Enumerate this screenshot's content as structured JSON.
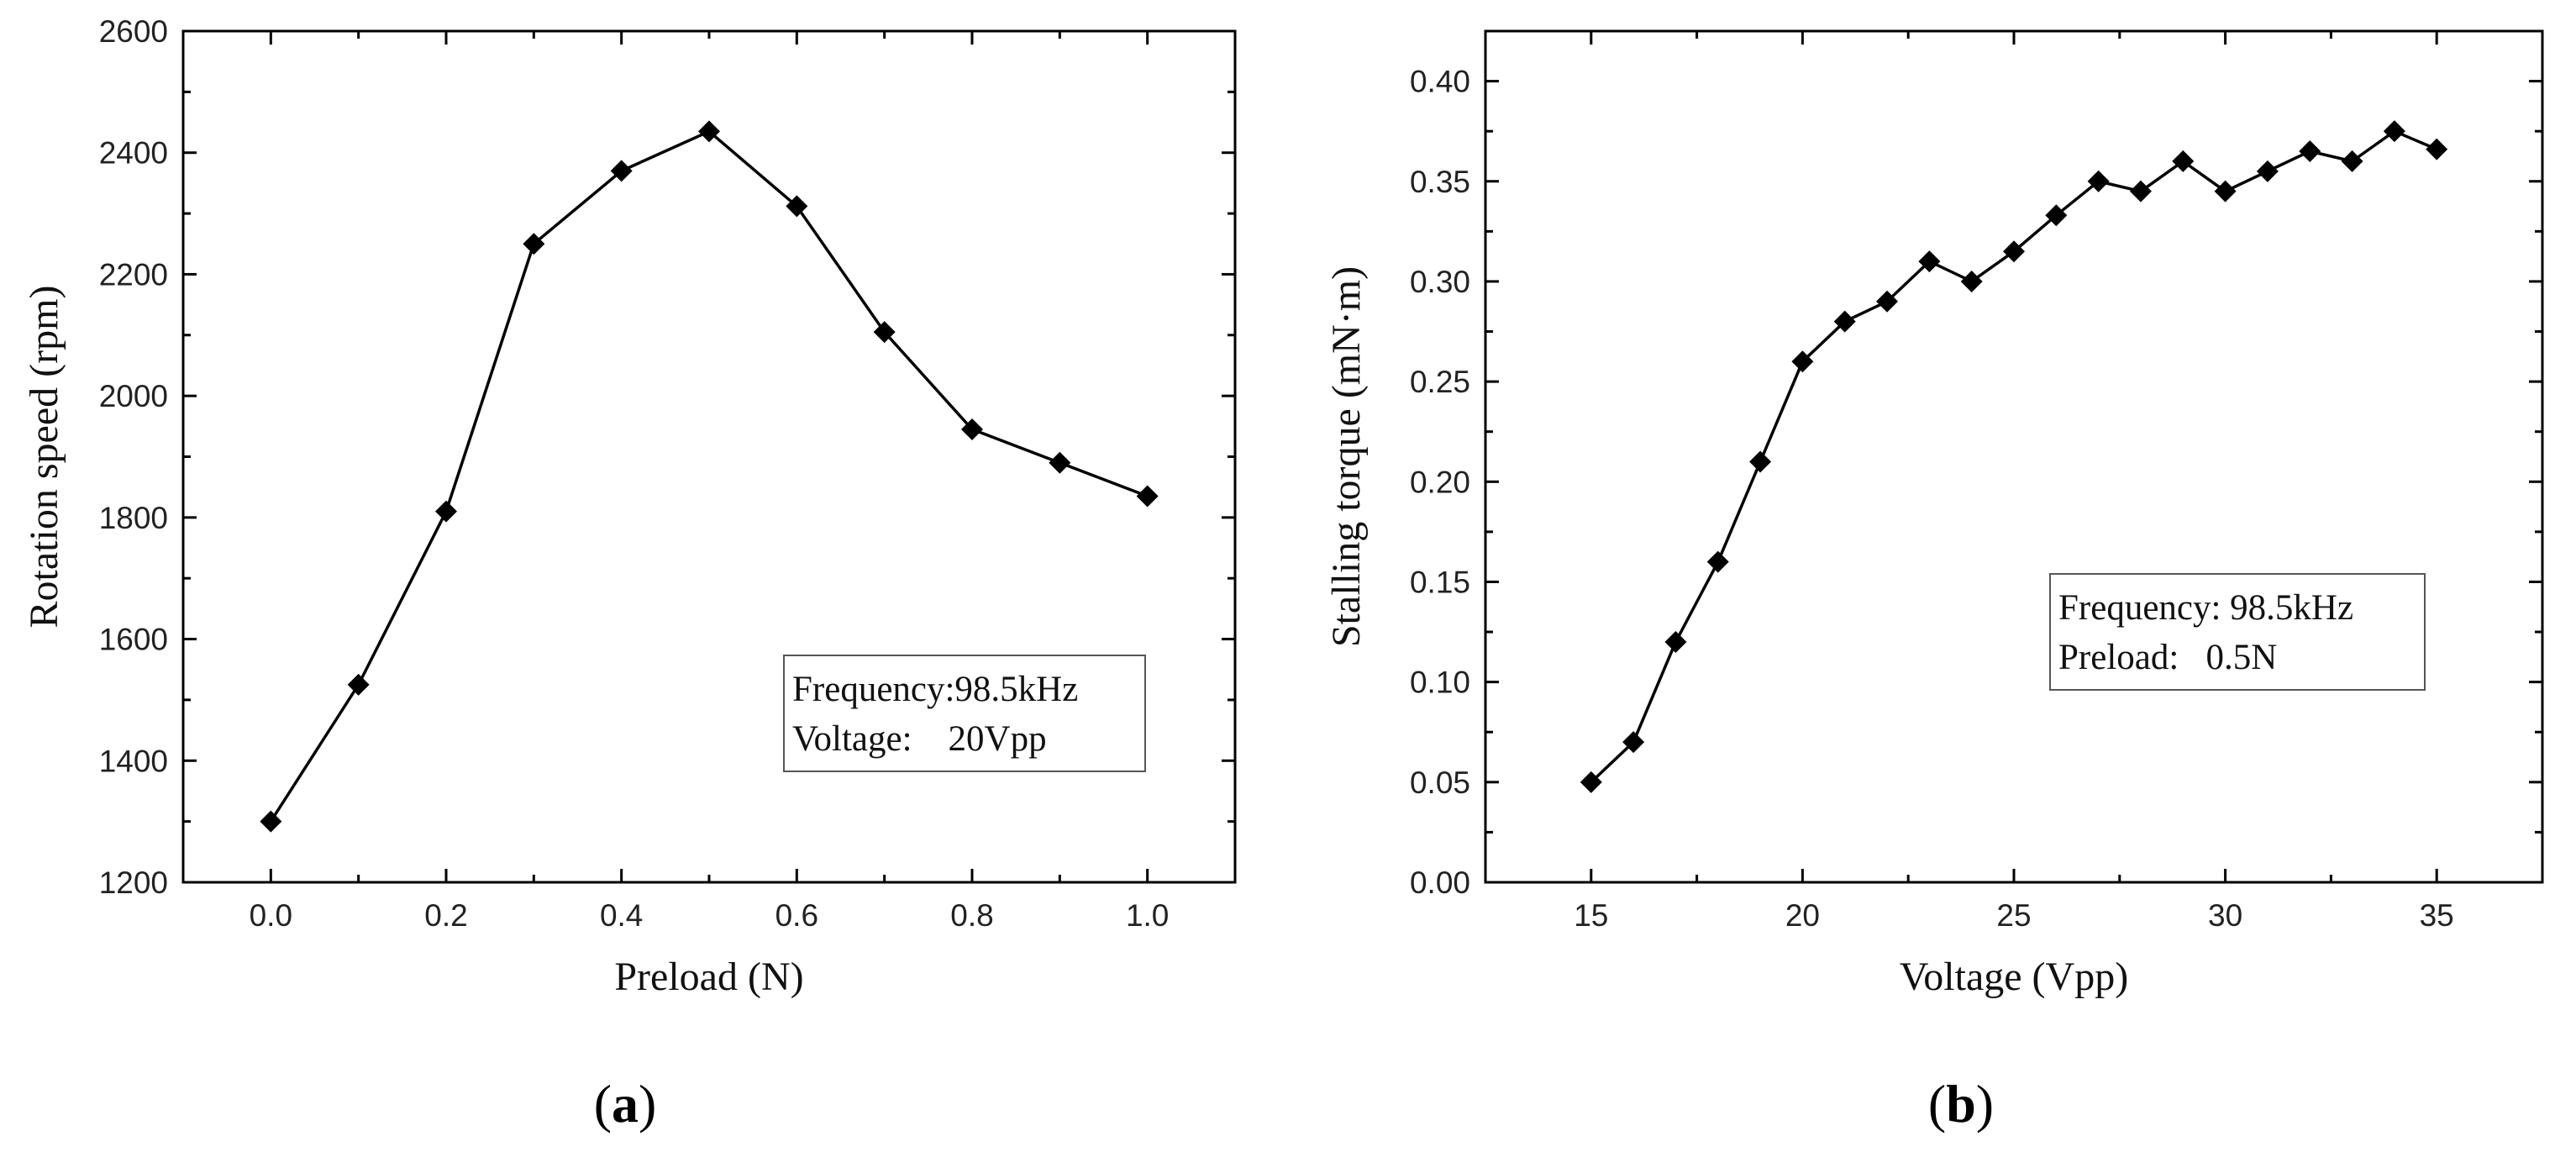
{
  "chart_data": [
    {
      "type": "line",
      "panel_label": "a",
      "xlabel": "Preload (N)",
      "ylabel": "Rotation speed (rpm)",
      "xlim": [
        -0.1,
        1.1
      ],
      "ylim": [
        1200,
        2600
      ],
      "xticks": [
        "0.0",
        "0.2",
        "0.4",
        "0.6",
        "0.8",
        "1.0"
      ],
      "yticks": [
        "1200",
        "1400",
        "1600",
        "1800",
        "2000",
        "2200",
        "2400",
        "2600"
      ],
      "series": [
        {
          "name": "Rotation speed",
          "x": [
            0.0,
            0.1,
            0.2,
            0.3,
            0.4,
            0.5,
            0.6,
            0.7,
            0.8,
            0.9,
            1.0
          ],
          "y": [
            1300,
            1525,
            1810,
            2250,
            2370,
            2435,
            2312,
            2105,
            1945,
            1890,
            1835
          ]
        }
      ],
      "annotation": [
        "Frequency:98.5kHz",
        "Voltage:    20Vpp"
      ],
      "annotation_position": "bottom-right",
      "grid": false
    },
    {
      "type": "line",
      "panel_label": "b",
      "xlabel": "Voltage (Vpp)",
      "ylabel": "Stalling torque (mN·m)",
      "xlim": [
        12.5,
        37.5
      ],
      "ylim": [
        0.0,
        0.425
      ],
      "xticks": [
        "15",
        "20",
        "25",
        "30",
        "35"
      ],
      "yticks": [
        "0.00",
        "0.05",
        "0.10",
        "0.15",
        "0.20",
        "0.25",
        "0.30",
        "0.35",
        "0.40"
      ],
      "series": [
        {
          "name": "Stalling torque",
          "x": [
            15,
            16,
            17,
            18,
            19,
            20,
            21,
            22,
            23,
            24,
            25,
            26,
            27,
            28,
            29,
            30,
            31,
            32,
            33,
            34,
            35
          ],
          "y": [
            0.05,
            0.07,
            0.12,
            0.16,
            0.21,
            0.26,
            0.28,
            0.29,
            0.31,
            0.3,
            0.315,
            0.333,
            0.35,
            0.345,
            0.36,
            0.345,
            0.355,
            0.365,
            0.36,
            0.375,
            0.366
          ]
        }
      ],
      "annotation": [
        "Frequency: 98.5kHz",
        "Preload:   0.5N"
      ],
      "annotation_position": "center-right",
      "grid": false
    }
  ]
}
